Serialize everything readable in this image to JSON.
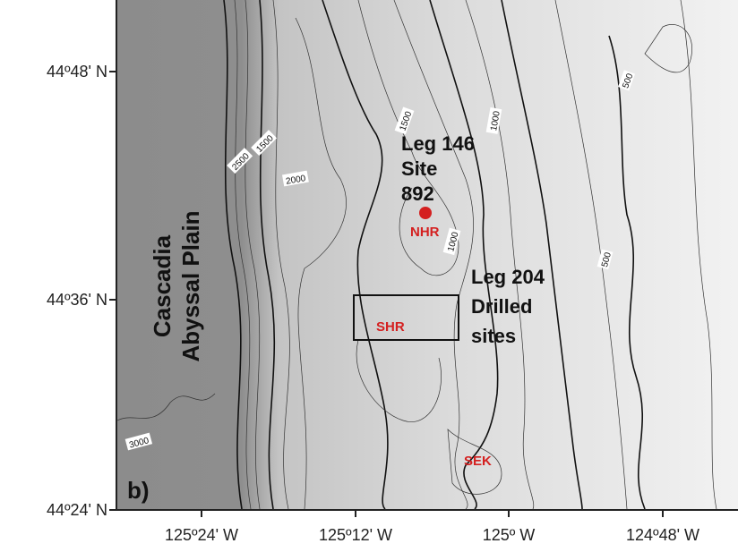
{
  "map": {
    "y_axis_labels": [
      "44º48' N",
      "44º36' N",
      "44º24' N"
    ],
    "x_axis_labels": [
      "125º24' W",
      "125º12' W",
      "125º W",
      "124º48' W"
    ],
    "panel_label": "b)",
    "region_label": [
      "Cascadia",
      "Abyssal Plain"
    ],
    "leg146_label": [
      "Leg 146",
      "Site",
      "892"
    ],
    "leg204_label": [
      "Leg 204",
      "Drilled",
      "sites"
    ],
    "features": [
      "NHR",
      "SHR",
      "SEK"
    ],
    "contour_labels": [
      "2500",
      "1500",
      "2000",
      "1500",
      "1000",
      "1000",
      "500",
      "500",
      "3000"
    ]
  }
}
